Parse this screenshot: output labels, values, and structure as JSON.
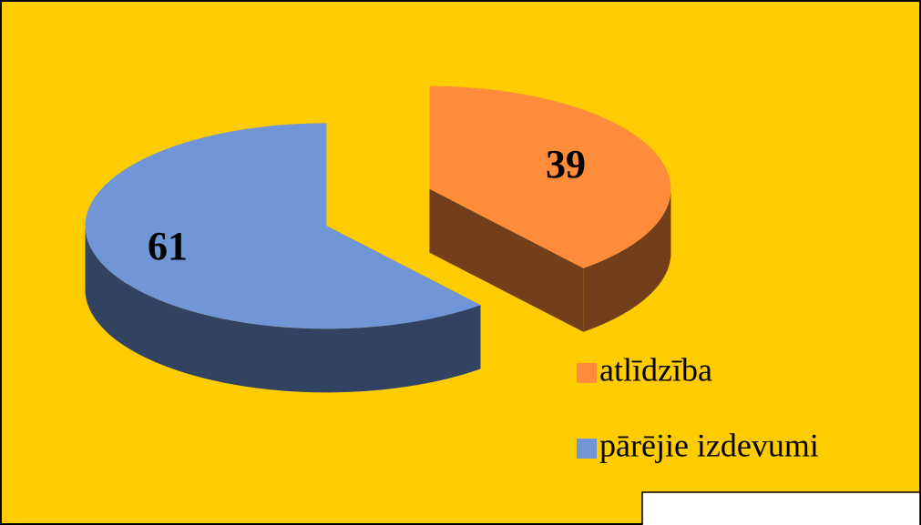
{
  "chart_data": {
    "type": "pie",
    "categories": [
      "atlīdzība",
      "pārējie izdevumi"
    ],
    "values": [
      39,
      61
    ],
    "colors": [
      "#ff8c3a",
      "#7096d8"
    ],
    "legend": "right"
  }
}
